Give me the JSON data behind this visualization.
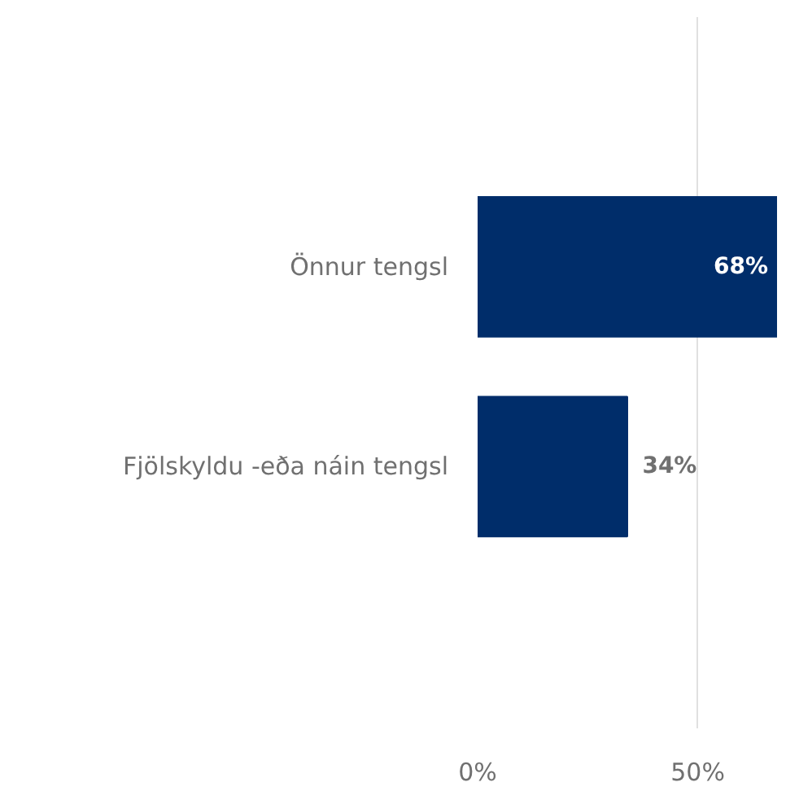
{
  "chart_data": {
    "type": "bar",
    "orientation": "horizontal",
    "categories": [
      "Önnur tengsl",
      "Fjölskyldu -eða náin tengsl"
    ],
    "values": [
      68,
      34
    ],
    "color": "#002d6a",
    "value_labels": [
      "68%",
      "34%"
    ],
    "xlim": [
      0,
      68
    ],
    "xticks": [
      {
        "value": 0,
        "label": "0%"
      },
      {
        "value": 50,
        "label": "50%"
      }
    ],
    "grid": "x"
  }
}
